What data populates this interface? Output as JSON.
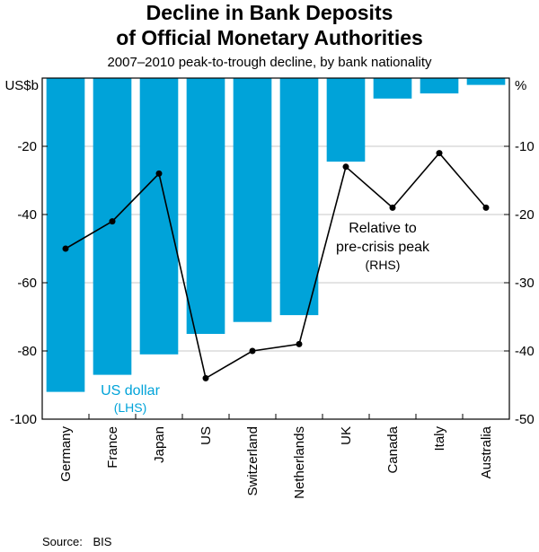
{
  "title_line1": "Decline in Bank Deposits",
  "title_line2": "of Official Monetary Authorities",
  "subtitle": "2007–2010 peak-to-trough decline, by bank nationality",
  "source": {
    "label": "Source:",
    "value": "BIS"
  },
  "colors": {
    "bar": "#00A3D9",
    "line": "#000000",
    "grid": "#c8c8c8",
    "axis": "#000000"
  },
  "chart_data": {
    "type": "bar+line",
    "categories": [
      "Germany",
      "France",
      "Japan",
      "US",
      "Switzerland",
      "Netherlands",
      "UK",
      "Canada",
      "Italy",
      "Australia"
    ],
    "series": [
      {
        "name": "US dollar",
        "axis": "left",
        "kind": "bar",
        "label_line1": "US dollar",
        "label_line2": "(LHS)",
        "values": [
          -92,
          -87,
          -81,
          -75,
          -71.5,
          -69.5,
          -24.5,
          -6,
          -4.5,
          -2
        ]
      },
      {
        "name": "Relative to pre-crisis peak",
        "axis": "right",
        "kind": "line",
        "label_line1": "Relative to",
        "label_line2": "pre-crisis peak",
        "label_line3": "(RHS)",
        "values": [
          -25,
          -21,
          -14,
          -44,
          -40,
          -39,
          -13,
          -19,
          -11,
          -19
        ]
      }
    ],
    "y_left": {
      "label": "US$b",
      "min": -100,
      "max": 0,
      "ticks": [
        -20,
        -40,
        -60,
        -80,
        -100
      ]
    },
    "y_right": {
      "label": "%",
      "min": -50,
      "max": 0,
      "ticks": [
        -10,
        -20,
        -30,
        -40,
        -50
      ]
    }
  }
}
